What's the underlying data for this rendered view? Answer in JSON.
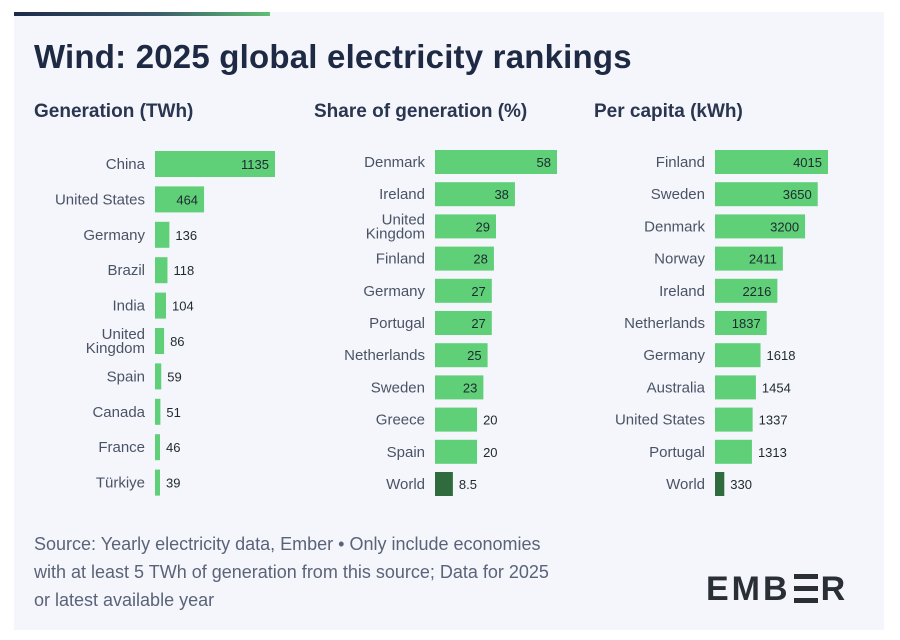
{
  "title": "Wind: 2025 global electricity rankings",
  "columns": [
    {
      "title": "Generation (TWh)"
    },
    {
      "title": "Share of generation (%)"
    },
    {
      "title": "Per capita (kWh)"
    }
  ],
  "footer": {
    "line1": "Source: Yearly electricity data, Ember • Only include economies",
    "line2": "with at least 5 TWh of generation from this source; Data for 2025",
    "line3": "or latest available year"
  },
  "logo": "EMBER",
  "colors": {
    "bar": "#5fcf78",
    "world_bar": "#2f6b3c",
    "label": "#4a5366",
    "value_text": "#1e2a30"
  },
  "chart_data": [
    {
      "type": "bar",
      "orientation": "horizontal",
      "title": "Generation (TWh)",
      "categories": [
        "China",
        "United States",
        "Germany",
        "Brazil",
        "India",
        "United Kingdom",
        "Spain",
        "Canada",
        "France",
        "Türkiye"
      ],
      "values": [
        1135,
        464,
        136,
        118,
        104,
        86,
        59,
        51,
        46,
        39
      ],
      "value_labels": [
        "1135",
        "464",
        "136",
        "118",
        "104",
        "86",
        "59",
        "51",
        "46",
        "39"
      ],
      "highlight": []
    },
    {
      "type": "bar",
      "orientation": "horizontal",
      "title": "Share of generation (%)",
      "categories": [
        "Denmark",
        "Ireland",
        "United Kingdom",
        "Finland",
        "Germany",
        "Portugal",
        "Netherlands",
        "Sweden",
        "Greece",
        "Spain",
        "World"
      ],
      "values": [
        58,
        38,
        29,
        28,
        27,
        27,
        25,
        23,
        20,
        20,
        8.5
      ],
      "value_labels": [
        "58",
        "38",
        "29",
        "28",
        "27",
        "27",
        "25",
        "23",
        "20",
        "20",
        "8.5"
      ],
      "highlight": [
        "World"
      ]
    },
    {
      "type": "bar",
      "orientation": "horizontal",
      "title": "Per capita (kWh)",
      "categories": [
        "Finland",
        "Sweden",
        "Denmark",
        "Norway",
        "Ireland",
        "Netherlands",
        "Germany",
        "Australia",
        "United States",
        "Portugal",
        "World"
      ],
      "values": [
        4015,
        3650,
        3200,
        2411,
        2216,
        1837,
        1618,
        1454,
        1337,
        1313,
        330
      ],
      "value_labels": [
        "4015",
        "3650",
        "3200",
        "2411",
        "2216",
        "1837",
        "1618",
        "1454",
        "1337",
        "1313",
        "330"
      ],
      "highlight": [
        "World"
      ]
    }
  ]
}
